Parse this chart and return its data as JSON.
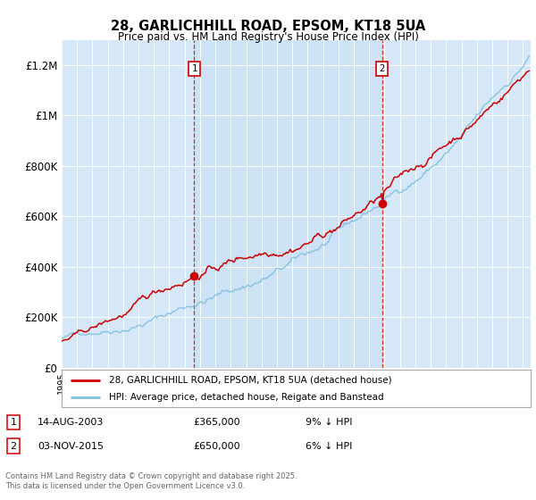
{
  "title": "28, GARLICHHILL ROAD, EPSOM, KT18 5UA",
  "subtitle": "Price paid vs. HM Land Registry's House Price Index (HPI)",
  "ylim": [
    0,
    1300000
  ],
  "yticks": [
    0,
    200000,
    400000,
    600000,
    800000,
    1000000,
    1200000
  ],
  "ytick_labels": [
    "£0",
    "£200K",
    "£400K",
    "£600K",
    "£800K",
    "£1M",
    "£1.2M"
  ],
  "background_color": "#d6e8f7",
  "grid_color": "#ffffff",
  "line_color_property": "#cc0000",
  "line_color_hpi": "#7fbfdf",
  "sale1_x": 2003.62,
  "sale1_y": 365000,
  "sale2_x": 2015.84,
  "sale2_y": 650000,
  "legend_property": "28, GARLICHHILL ROAD, EPSOM, KT18 5UA (detached house)",
  "legend_hpi": "HPI: Average price, detached house, Reigate and Banstead",
  "note1_label": "1",
  "note1_date": "14-AUG-2003",
  "note1_price": "£365,000",
  "note1_hpi": "9% ↓ HPI",
  "note2_label": "2",
  "note2_date": "03-NOV-2015",
  "note2_price": "£650,000",
  "note2_hpi": "6% ↓ HPI",
  "footer": "Contains HM Land Registry data © Crown copyright and database right 2025.\nThis data is licensed under the Open Government Licence v3.0.",
  "xmin": 1995,
  "xmax": 2025.5
}
